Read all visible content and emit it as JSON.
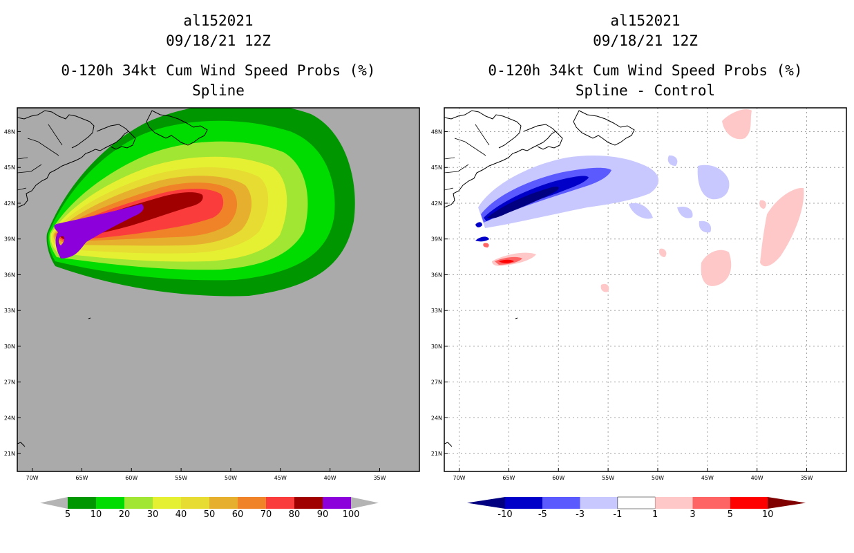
{
  "left": {
    "title_lines": [
      "al152021",
      "09/18/21 12Z",
      "0-120h 34kt Cum Wind Speed Probs (%)",
      "Spline"
    ],
    "colorbar": {
      "labels": [
        "5",
        "10",
        "20",
        "30",
        "40",
        "50",
        "60",
        "70",
        "80",
        "90",
        "100"
      ],
      "colors": [
        "#009600",
        "#00dc00",
        "#a0e632",
        "#e6f032",
        "#e6dc32",
        "#e6af2d",
        "#f08228",
        "#fa3c3c",
        "#a00000",
        "#8c00dc"
      ],
      "end_color": "#b4b4b4"
    }
  },
  "right": {
    "title_lines": [
      "al152021",
      "09/18/21 12Z",
      "0-120h 34kt Cum Wind Speed Probs (%)",
      "Spline - Control"
    ],
    "colorbar": {
      "labels": [
        "-10",
        "-5",
        "-3",
        "-1",
        "1",
        "3",
        "5",
        "10"
      ],
      "colors": [
        "#0000c8",
        "#5a5aff",
        "#c8c8ff",
        "#ffffff",
        "#ffc8c8",
        "#ff6464",
        "#ff0000"
      ],
      "low_color": "#000080",
      "high_color": "#800000"
    }
  },
  "axes": {
    "lat_labels": [
      "48N",
      "45N",
      "42N",
      "39N",
      "36N",
      "33N",
      "30N",
      "27N",
      "24N",
      "21N"
    ],
    "lon_labels": [
      "70W",
      "65W",
      "60W",
      "55W",
      "50W",
      "45W",
      "40W",
      "35W"
    ]
  },
  "chart_data": [
    {
      "type": "contour-map",
      "title": "0-120h 34kt Cum Wind Speed Probs (%)",
      "subtitle": "Spline",
      "storm": "al152021",
      "valid_time": "09/18/21 12Z",
      "contour_levels": [
        5,
        10,
        20,
        30,
        40,
        50,
        60,
        70,
        80,
        90,
        100
      ],
      "lon_range": [
        -71.5,
        -31
      ],
      "lat_range": [
        19.5,
        50
      ],
      "lon_ticks": [
        -70,
        -65,
        -60,
        -55,
        -50,
        -45,
        -40,
        -35
      ],
      "lat_ticks": [
        48,
        45,
        42,
        39,
        36,
        33,
        30,
        27,
        24,
        21
      ]
    },
    {
      "type": "contour-map",
      "title": "0-120h 34kt Cum Wind Speed Probs (%)",
      "subtitle": "Spline - Control",
      "storm": "al152021",
      "valid_time": "09/18/21 12Z",
      "contour_levels": [
        -10,
        -5,
        -3,
        -1,
        1,
        3,
        5,
        10
      ],
      "lon_range": [
        -71.5,
        -31
      ],
      "lat_range": [
        19.5,
        50
      ],
      "lon_ticks": [
        -70,
        -65,
        -60,
        -55,
        -50,
        -45,
        -40,
        -35
      ],
      "lat_ticks": [
        48,
        45,
        42,
        39,
        36,
        33,
        30,
        27,
        24,
        21
      ]
    }
  ]
}
